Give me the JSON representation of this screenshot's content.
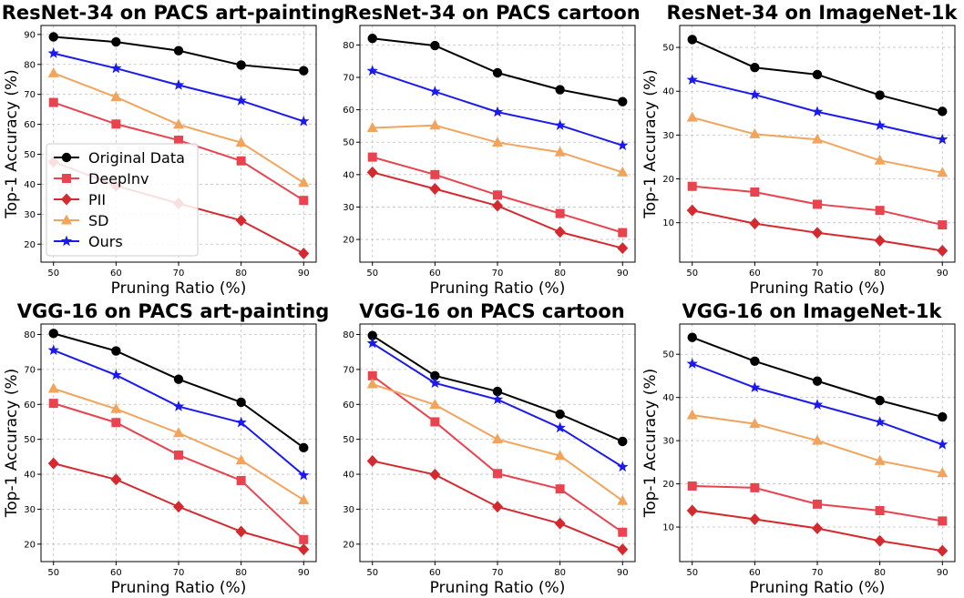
{
  "colors": {
    "original": "#000000",
    "deepinv": "#e8434e",
    "pii": "#d42a2f",
    "sd": "#f2a45c",
    "ours": "#1a1aee"
  },
  "legend": {
    "location": "left-middle of first panel",
    "entries": [
      {
        "key": "original",
        "label": "Original Data",
        "marker": "circle"
      },
      {
        "key": "deepinv",
        "label": "DeepInv",
        "marker": "square"
      },
      {
        "key": "pii",
        "label": "PII",
        "marker": "diamond"
      },
      {
        "key": "sd",
        "label": "SD",
        "marker": "triangle"
      },
      {
        "key": "ours",
        "label": "Ours",
        "marker": "star"
      }
    ]
  },
  "chart_data": [
    {
      "type": "line",
      "title": "ResNet-34 on PACS art-painting",
      "xlabel": "Pruning Ratio (%)",
      "ylabel": "Top-1 Accuracy (%)",
      "x": [
        50,
        60,
        70,
        80,
        90
      ],
      "xlim": [
        48,
        92
      ],
      "ylim": [
        14,
        93
      ],
      "yticks": [
        20,
        30,
        40,
        50,
        60,
        70,
        80,
        90
      ],
      "grid": true,
      "legend": true,
      "series": [
        {
          "key": "original",
          "name": "Original Data",
          "values": [
            89.2,
            87.5,
            84.6,
            79.8,
            77.9
          ]
        },
        {
          "key": "deepinv",
          "name": "DeepInv",
          "values": [
            67.3,
            60.1,
            54.7,
            47.8,
            34.6
          ]
        },
        {
          "key": "pii",
          "name": "PII",
          "values": [
            47.5,
            39.5,
            33.6,
            27.9,
            16.9
          ]
        },
        {
          "key": "sd",
          "name": "SD",
          "values": [
            77.1,
            69.1,
            59.9,
            53.9,
            40.5
          ]
        },
        {
          "key": "ours",
          "name": "Ours",
          "values": [
            83.7,
            78.7,
            73.1,
            67.9,
            61.0
          ]
        }
      ]
    },
    {
      "type": "line",
      "title": "ResNet-34 on PACS cartoon",
      "xlabel": "Pruning Ratio (%)",
      "ylabel": "",
      "x": [
        50,
        60,
        70,
        80,
        90
      ],
      "xlim": [
        48,
        92
      ],
      "ylim": [
        13,
        86
      ],
      "yticks": [
        20,
        30,
        40,
        50,
        60,
        70,
        80
      ],
      "grid": true,
      "legend": false,
      "series": [
        {
          "key": "original",
          "name": "Original Data",
          "values": [
            82.0,
            79.8,
            71.4,
            66.2,
            62.5
          ]
        },
        {
          "key": "deepinv",
          "name": "DeepInv",
          "values": [
            45.4,
            40.0,
            33.7,
            28.0,
            22.1
          ]
        },
        {
          "key": "pii",
          "name": "PII",
          "values": [
            40.7,
            35.6,
            30.4,
            22.3,
            17.3
          ]
        },
        {
          "key": "sd",
          "name": "SD",
          "values": [
            54.4,
            55.2,
            49.9,
            46.9,
            40.7
          ]
        },
        {
          "key": "ours",
          "name": "Ours",
          "values": [
            72.0,
            65.6,
            59.3,
            55.2,
            49.0
          ]
        }
      ]
    },
    {
      "type": "line",
      "title": "ResNet-34 on ImageNet-1k",
      "xlabel": "Pruning Ratio (%)",
      "ylabel": "Top-1 Accuracy (%)",
      "x": [
        50,
        60,
        70,
        80,
        90
      ],
      "xlim": [
        48,
        92
      ],
      "ylim": [
        1,
        55
      ],
      "yticks": [
        10,
        20,
        30,
        40,
        50
      ],
      "grid": true,
      "legend": false,
      "series": [
        {
          "key": "original",
          "name": "Original Data",
          "values": [
            51.8,
            45.4,
            43.8,
            39.1,
            35.4
          ]
        },
        {
          "key": "deepinv",
          "name": "DeepInv",
          "values": [
            18.3,
            17.0,
            14.2,
            12.8,
            9.5
          ]
        },
        {
          "key": "pii",
          "name": "PII",
          "values": [
            12.8,
            9.8,
            7.7,
            5.9,
            3.6
          ]
        },
        {
          "key": "sd",
          "name": "SD",
          "values": [
            34.0,
            30.2,
            29.0,
            24.2,
            21.4
          ]
        },
        {
          "key": "ours",
          "name": "Ours",
          "values": [
            42.6,
            39.2,
            35.3,
            32.2,
            29.0
          ]
        }
      ]
    },
    {
      "type": "line",
      "title": "VGG-16 on PACS art-painting",
      "xlabel": "Pruning Ratio (%)",
      "ylabel": "Top-1 Accuracy (%)",
      "x": [
        50,
        60,
        70,
        80,
        90
      ],
      "xlim": [
        48,
        92
      ],
      "ylim": [
        15,
        83
      ],
      "yticks": [
        20,
        30,
        40,
        50,
        60,
        70,
        80
      ],
      "grid": true,
      "legend": false,
      "series": [
        {
          "key": "original",
          "name": "Original Data",
          "values": [
            80.3,
            75.3,
            67.2,
            60.6,
            47.6
          ]
        },
        {
          "key": "deepinv",
          "name": "DeepInv",
          "values": [
            60.3,
            54.8,
            45.5,
            38.2,
            21.3
          ]
        },
        {
          "key": "pii",
          "name": "PII",
          "values": [
            43.1,
            38.5,
            30.7,
            23.6,
            18.5
          ]
        },
        {
          "key": "sd",
          "name": "SD",
          "values": [
            64.5,
            58.7,
            51.8,
            44.0,
            32.6
          ]
        },
        {
          "key": "ours",
          "name": "Ours",
          "values": [
            75.5,
            68.4,
            59.4,
            54.8,
            39.7
          ]
        }
      ]
    },
    {
      "type": "line",
      "title": "VGG-16 on PACS cartoon",
      "xlabel": "Pruning Ratio (%)",
      "ylabel": "",
      "x": [
        50,
        60,
        70,
        80,
        90
      ],
      "xlim": [
        48,
        92
      ],
      "ylim": [
        15,
        83
      ],
      "yticks": [
        20,
        30,
        40,
        50,
        60,
        70,
        80
      ],
      "grid": true,
      "legend": false,
      "series": [
        {
          "key": "original",
          "name": "Original Data",
          "values": [
            79.7,
            68.2,
            63.7,
            57.2,
            49.4
          ]
        },
        {
          "key": "deepinv",
          "name": "DeepInv",
          "values": [
            68.2,
            55.0,
            40.2,
            35.8,
            23.4
          ]
        },
        {
          "key": "pii",
          "name": "PII",
          "values": [
            43.8,
            39.9,
            30.7,
            25.9,
            18.5
          ]
        },
        {
          "key": "sd",
          "name": "SD",
          "values": [
            65.8,
            59.9,
            50.0,
            45.3,
            32.4
          ]
        },
        {
          "key": "ours",
          "name": "Ours",
          "values": [
            77.5,
            66.1,
            61.4,
            53.3,
            42.1
          ]
        }
      ]
    },
    {
      "type": "line",
      "title": "VGG-16 on ImageNet-1k",
      "xlabel": "Pruning Ratio (%)",
      "ylabel": "Top-1 Accuracy (%)",
      "x": [
        50,
        60,
        70,
        80,
        90
      ],
      "xlim": [
        48,
        92
      ],
      "ylim": [
        2,
        57
      ],
      "yticks": [
        10,
        20,
        30,
        40,
        50
      ],
      "grid": true,
      "legend": false,
      "series": [
        {
          "key": "original",
          "name": "Original Data",
          "values": [
            53.9,
            48.4,
            43.8,
            39.3,
            35.5
          ]
        },
        {
          "key": "deepinv",
          "name": "DeepInv",
          "values": [
            19.5,
            19.1,
            15.3,
            13.8,
            11.4
          ]
        },
        {
          "key": "pii",
          "name": "PII",
          "values": [
            13.8,
            11.8,
            9.7,
            6.8,
            4.5
          ]
        },
        {
          "key": "sd",
          "name": "SD",
          "values": [
            35.9,
            33.9,
            30.0,
            25.3,
            22.5
          ]
        },
        {
          "key": "ours",
          "name": "Ours",
          "values": [
            47.8,
            42.3,
            38.3,
            34.3,
            29.1
          ]
        }
      ]
    }
  ]
}
